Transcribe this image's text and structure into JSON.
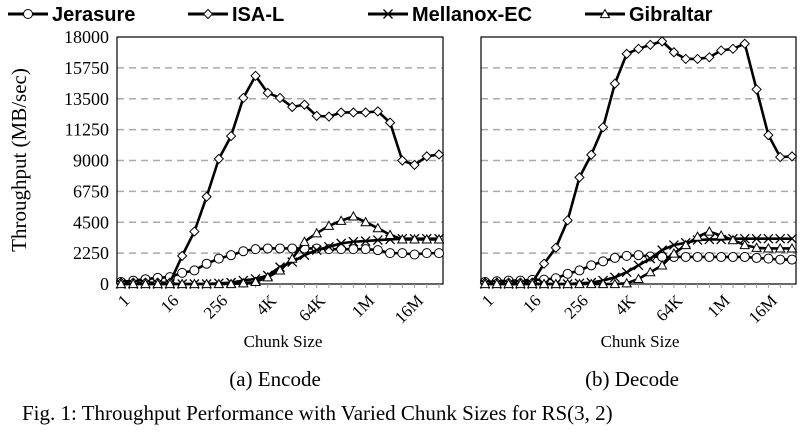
{
  "legend": [
    "Jerasure",
    "ISA-L",
    "Mellanox-EC",
    "Gibraltar"
  ],
  "ylabel": "Throughput (MB/sec)",
  "caption": "Fig. 1: Throughput Performance with Varied Chunk Sizes for RS(3, 2)",
  "chart_data": [
    {
      "type": "line",
      "title": "(a) Encode",
      "xlabel": "Chunk Size",
      "ylabel": "Throughput (MB/sec)",
      "x": [
        "1",
        "2",
        "4",
        "8",
        "16",
        "32",
        "64",
        "128",
        "256",
        "512",
        "1K",
        "2K",
        "4K",
        "8K",
        "16K",
        "32K",
        "64K",
        "128K",
        "256K",
        "512K",
        "1M",
        "2M",
        "4M",
        "8M",
        "16M",
        "32M",
        "64M"
      ],
      "xticklabels": [
        "1",
        "16",
        "256",
        "4K",
        "64K",
        "1M",
        "16M"
      ],
      "yticks": [
        0,
        2250,
        4500,
        6750,
        9000,
        11250,
        13500,
        15750,
        18000
      ],
      "ylim": [
        0,
        18000
      ],
      "grid": true,
      "series": [
        {
          "name": "Jerasure",
          "marker": "circle",
          "values": [
            150,
            250,
            350,
            450,
            500,
            810,
            990,
            1480,
            1850,
            2100,
            2390,
            2540,
            2590,
            2590,
            2590,
            2590,
            2590,
            2540,
            2540,
            2540,
            2540,
            2470,
            2250,
            2250,
            2150,
            2250,
            2250
          ]
        },
        {
          "name": "ISA-L",
          "marker": "diamond",
          "values": [
            100,
            100,
            100,
            100,
            100,
            2050,
            3820,
            6360,
            9120,
            10780,
            13560,
            15170,
            13930,
            13560,
            12900,
            13070,
            12250,
            12200,
            12500,
            12500,
            12500,
            12580,
            11760,
            9000,
            8680,
            9300,
            9440
          ]
        },
        {
          "name": "Mellanox-EC",
          "marker": "x",
          "values": [
            0,
            0,
            0,
            0,
            0,
            0,
            0,
            0,
            50,
            100,
            250,
            370,
            620,
            1230,
            1600,
            2100,
            2470,
            2710,
            2960,
            3080,
            3130,
            3200,
            3250,
            3300,
            3300,
            3300,
            3300
          ]
        },
        {
          "name": "Gibraltar",
          "marker": "triangle",
          "values": [
            0,
            0,
            0,
            0,
            0,
            0,
            0,
            0,
            0,
            0,
            50,
            150,
            490,
            990,
            1850,
            3080,
            3700,
            4240,
            4610,
            4930,
            4510,
            4070,
            3580,
            3250,
            3250,
            3250,
            3250
          ]
        }
      ]
    },
    {
      "type": "line",
      "title": "(b) Decode",
      "xlabel": "Chunk Size",
      "ylabel": "Throughput (MB/sec)",
      "x": [
        "1",
        "2",
        "4",
        "8",
        "16",
        "32",
        "64",
        "128",
        "256",
        "512",
        "1K",
        "2K",
        "4K",
        "8K",
        "16K",
        "32K",
        "64K",
        "128K",
        "256K",
        "512K",
        "1M",
        "2M",
        "4M",
        "8M",
        "16M",
        "32M",
        "64M"
      ],
      "xticklabels": [
        "1",
        "16",
        "256",
        "4K",
        "64K",
        "1M",
        "16M"
      ],
      "yticks": [
        0,
        2250,
        4500,
        6750,
        9000,
        11250,
        13500,
        15750,
        18000
      ],
      "ylim": [
        0,
        18000
      ],
      "grid": true,
      "series": [
        {
          "name": "Jerasure",
          "marker": "circle",
          "values": [
            150,
            200,
            250,
            250,
            300,
            320,
            420,
            740,
            990,
            1360,
            1650,
            1900,
            2050,
            2100,
            2000,
            1970,
            1970,
            1970,
            1970,
            1970,
            1970,
            1970,
            1970,
            1900,
            1850,
            1780,
            1780
          ]
        },
        {
          "name": "ISA-L",
          "marker": "diamond",
          "values": [
            100,
            100,
            100,
            100,
            100,
            1480,
            2640,
            4640,
            7770,
            9420,
            11420,
            14600,
            16770,
            17140,
            17430,
            17680,
            16890,
            16400,
            16400,
            16520,
            17020,
            17140,
            17510,
            14180,
            10850,
            9250,
            9300
          ]
        },
        {
          "name": "Mellanox-EC",
          "marker": "x",
          "values": [
            0,
            0,
            0,
            0,
            0,
            0,
            0,
            0,
            50,
            100,
            250,
            490,
            860,
            1360,
            1850,
            2470,
            2840,
            3000,
            3200,
            3250,
            3250,
            3300,
            3300,
            3300,
            3300,
            3300,
            3300
          ]
        },
        {
          "name": "Gibraltar",
          "marker": "triangle",
          "values": [
            0,
            0,
            0,
            0,
            0,
            0,
            0,
            0,
            0,
            0,
            0,
            0,
            50,
            370,
            860,
            1360,
            2220,
            2840,
            3450,
            3820,
            3530,
            3200,
            2840,
            2640,
            2590,
            2590,
            2590
          ]
        }
      ]
    }
  ]
}
